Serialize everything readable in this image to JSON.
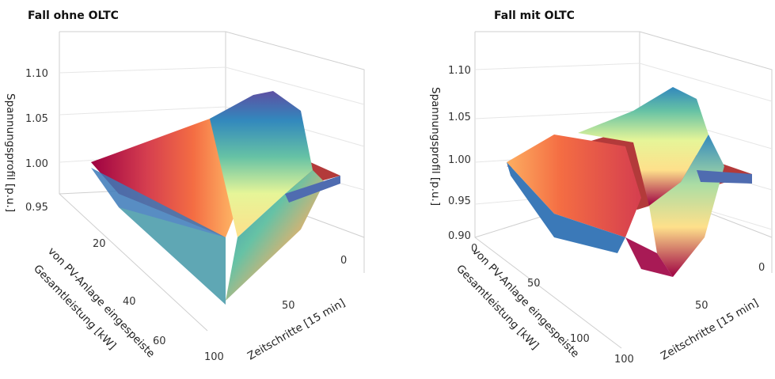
{
  "chart_data": [
    {
      "type": "surface",
      "title": "Fall ohne OLTC",
      "zlabel": "Spannungsprofil [p.u.]",
      "xlabel": "Zeitschritte [15 min]",
      "ylabel_lines": [
        "von PV-Anlage eingespeiste",
        "Gesamtleistung [kW]"
      ],
      "z_ticks": [
        "1.10",
        "1.05",
        "1.00",
        "0.95"
      ],
      "x_ticks": [
        "0",
        "50",
        "100"
      ],
      "y_ticks": [
        "20",
        "40",
        "60"
      ],
      "zlim": [
        0.93,
        1.1
      ],
      "xlim": [
        0,
        100
      ],
      "ylim": [
        0,
        70
      ],
      "surface_peak": 1.08,
      "surface_trough": 0.97,
      "colormap": "Spectral",
      "colors": [
        "#9e0142",
        "#f46d43",
        "#fee08b",
        "#e6f598",
        "#66c2a5",
        "#3288bd",
        "#5e4fa2"
      ]
    },
    {
      "type": "surface",
      "title": "Fall mit OLTC",
      "zlabel": "Spannungsprofil [p.u.]",
      "xlabel": "Zeitschritte [15 min]",
      "ylabel_lines": [
        "von PV-Anlage eingespeiste",
        "Gesamtleistung [kW]"
      ],
      "z_ticks": [
        "1.10",
        "1.05",
        "1.00",
        "0.95",
        "0.90"
      ],
      "x_ticks": [
        "0",
        "50",
        "100"
      ],
      "y_ticks": [
        "0",
        "50",
        "100"
      ],
      "zlim": [
        0.88,
        1.1
      ],
      "xlim": [
        0,
        100
      ],
      "ylim": [
        0,
        100
      ],
      "surface_peak": 1.07,
      "surface_trough": 0.91,
      "colormap": "Spectral",
      "colors": [
        "#9e0142",
        "#f46d43",
        "#fee08b",
        "#e6f598",
        "#66c2a5",
        "#3288bd",
        "#5e4fa2"
      ]
    }
  ]
}
